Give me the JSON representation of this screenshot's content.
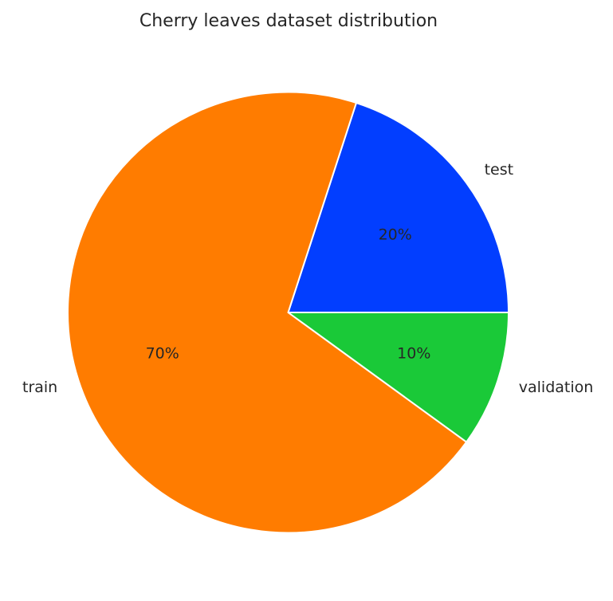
{
  "chart_data": {
    "type": "pie",
    "title": "Cherry leaves dataset distribution",
    "slices": [
      {
        "label": "test",
        "value": 20,
        "pct_label": "20%",
        "color": "#023eff"
      },
      {
        "label": "train",
        "value": 70,
        "pct_label": "70%",
        "color": "#ff7c00"
      },
      {
        "label": "validation",
        "value": 10,
        "pct_label": "10%",
        "color": "#1ac938"
      }
    ],
    "start_angle_deg": 0,
    "direction": "counterclockwise",
    "slice_edge_color": "#ffffff"
  }
}
